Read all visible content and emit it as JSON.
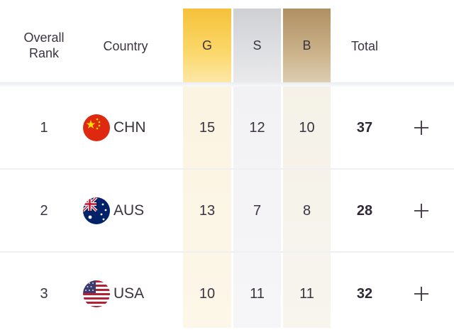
{
  "header": {
    "rank_label": "Overall Rank",
    "country_label": "Country",
    "gold_label": "G",
    "silver_label": "S",
    "bronze_label": "B",
    "total_label": "Total"
  },
  "colors": {
    "gold": "#f6c13a",
    "silver": "#cfd0d3",
    "bronze": "#b09062"
  },
  "rows": [
    {
      "rank": "1",
      "country": "CHN",
      "flag": "china-flag-icon",
      "gold": "15",
      "silver": "12",
      "bronze": "10",
      "total": "37"
    },
    {
      "rank": "2",
      "country": "AUS",
      "flag": "australia-flag-icon",
      "gold": "13",
      "silver": "7",
      "bronze": "8",
      "total": "28"
    },
    {
      "rank": "3",
      "country": "USA",
      "flag": "usa-flag-icon",
      "gold": "10",
      "silver": "11",
      "bronze": "11",
      "total": "32"
    }
  ]
}
